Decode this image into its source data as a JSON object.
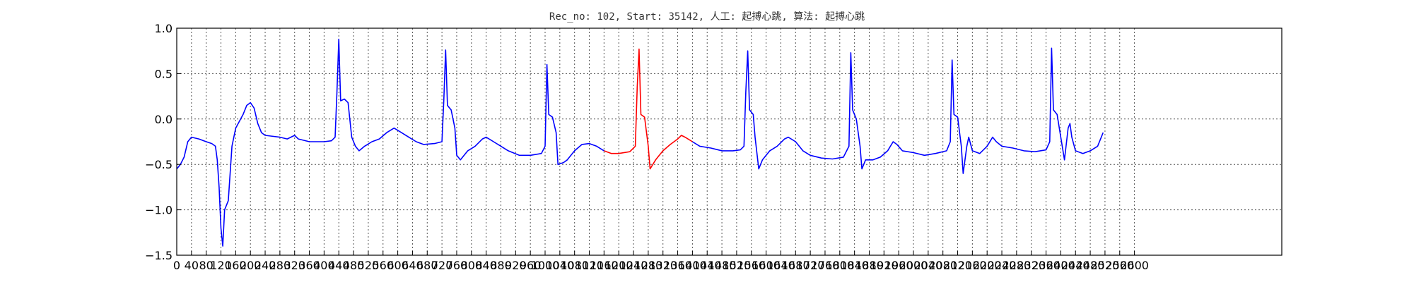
{
  "chart_data": {
    "type": "line",
    "title": "Rec_no: 102, Start: 35142, 人工: 起搏心跳, 算法: 起搏心跳",
    "xlabel": "",
    "ylabel": "",
    "xlim": [
      0,
      3000
    ],
    "ylim": [
      -1.5,
      1.0
    ],
    "grid": true,
    "colors": {
      "normal": "#0000ff",
      "highlight": "#ff0000"
    },
    "x_ticks": [
      0,
      40,
      80,
      120,
      160,
      200,
      240,
      280,
      320,
      360,
      400,
      440,
      480,
      520,
      560,
      600,
      640,
      680,
      720,
      760,
      800,
      840,
      880,
      920,
      960,
      1000,
      1040,
      1080,
      1120,
      1160,
      1200,
      1240,
      1280,
      1320,
      1360,
      1400,
      1440,
      1480,
      1520,
      1560,
      1600,
      1640,
      1680,
      1720,
      1760,
      1800,
      1840,
      1880,
      1920,
      1960,
      2000,
      2040,
      2080,
      2120,
      2160,
      2200,
      2240,
      2280,
      2320,
      2360,
      2400,
      2440,
      2480,
      2520,
      2560,
      2600
    ],
    "y_ticks": [
      "1.0",
      "0.5",
      "0.0",
      "−0.5",
      "−1.0",
      "−1.5"
    ],
    "y_tick_values": [
      1.0,
      0.5,
      0.0,
      -0.5,
      -1.0,
      -1.5
    ],
    "series": [
      {
        "color": "#0000ff",
        "points": [
          [
            0,
            -0.55
          ],
          [
            10,
            -0.5
          ],
          [
            20,
            -0.42
          ],
          [
            30,
            -0.25
          ],
          [
            40,
            -0.2
          ],
          [
            60,
            -0.22
          ],
          [
            80,
            -0.25
          ],
          [
            95,
            -0.27
          ],
          [
            105,
            -0.3
          ],
          [
            110,
            -0.45
          ],
          [
            115,
            -0.75
          ],
          [
            120,
            -1.2
          ],
          [
            125,
            -1.4
          ],
          [
            130,
            -1.0
          ],
          [
            140,
            -0.9
          ],
          [
            150,
            -0.3
          ],
          [
            160,
            -0.1
          ],
          [
            180,
            0.05
          ],
          [
            190,
            0.15
          ],
          [
            200,
            0.18
          ],
          [
            210,
            0.12
          ],
          [
            220,
            -0.05
          ],
          [
            230,
            -0.15
          ],
          [
            240,
            -0.18
          ],
          [
            280,
            -0.2
          ],
          [
            300,
            -0.22
          ],
          [
            320,
            -0.18
          ],
          [
            330,
            -0.22
          ],
          [
            360,
            -0.25
          ],
          [
            400,
            -0.25
          ],
          [
            420,
            -0.24
          ],
          [
            430,
            -0.2
          ],
          [
            435,
            0.3
          ],
          [
            440,
            0.88
          ],
          [
            445,
            0.2
          ],
          [
            455,
            0.22
          ],
          [
            465,
            0.18
          ],
          [
            475,
            -0.2
          ],
          [
            485,
            -0.3
          ],
          [
            495,
            -0.35
          ],
          [
            510,
            -0.3
          ],
          [
            530,
            -0.25
          ],
          [
            550,
            -0.22
          ],
          [
            570,
            -0.15
          ],
          [
            590,
            -0.1
          ],
          [
            610,
            -0.15
          ],
          [
            630,
            -0.2
          ],
          [
            650,
            -0.25
          ],
          [
            670,
            -0.28
          ],
          [
            700,
            -0.27
          ],
          [
            720,
            -0.25
          ],
          [
            725,
            0.2
          ],
          [
            730,
            0.76
          ],
          [
            735,
            0.15
          ],
          [
            745,
            0.1
          ],
          [
            755,
            -0.1
          ],
          [
            760,
            -0.4
          ],
          [
            770,
            -0.45
          ],
          [
            790,
            -0.35
          ],
          [
            810,
            -0.3
          ],
          [
            830,
            -0.22
          ],
          [
            840,
            -0.2
          ],
          [
            860,
            -0.25
          ],
          [
            880,
            -0.3
          ],
          [
            900,
            -0.35
          ],
          [
            930,
            -0.4
          ],
          [
            960,
            -0.4
          ],
          [
            990,
            -0.38
          ],
          [
            1000,
            -0.3
          ],
          [
            1005,
            0.6
          ],
          [
            1010,
            0.05
          ],
          [
            1020,
            0.02
          ],
          [
            1030,
            -0.15
          ],
          [
            1035,
            -0.5
          ],
          [
            1050,
            -0.48
          ],
          [
            1060,
            -0.45
          ],
          [
            1080,
            -0.35
          ],
          [
            1100,
            -0.28
          ],
          [
            1120,
            -0.27
          ],
          [
            1140,
            -0.3
          ],
          [
            1160,
            -0.35
          ]
        ]
      },
      {
        "color": "#ff0000",
        "points": [
          [
            1160,
            -0.35
          ],
          [
            1180,
            -0.38
          ],
          [
            1200,
            -0.38
          ],
          [
            1230,
            -0.36
          ],
          [
            1245,
            -0.3
          ],
          [
            1250,
            0.35
          ],
          [
            1255,
            0.77
          ],
          [
            1260,
            0.05
          ],
          [
            1270,
            0.02
          ],
          [
            1280,
            -0.3
          ],
          [
            1285,
            -0.55
          ],
          [
            1300,
            -0.45
          ],
          [
            1320,
            -0.35
          ],
          [
            1340,
            -0.28
          ],
          [
            1360,
            -0.22
          ],
          [
            1370,
            -0.18
          ],
          [
            1380,
            -0.2
          ],
          [
            1400,
            -0.25
          ]
        ]
      },
      {
        "color": "#0000ff",
        "points": [
          [
            1400,
            -0.25
          ],
          [
            1420,
            -0.3
          ],
          [
            1450,
            -0.32
          ],
          [
            1480,
            -0.35
          ],
          [
            1510,
            -0.35
          ],
          [
            1530,
            -0.34
          ],
          [
            1540,
            -0.3
          ],
          [
            1545,
            0.3
          ],
          [
            1550,
            0.75
          ],
          [
            1555,
            0.1
          ],
          [
            1565,
            0.05
          ],
          [
            1570,
            -0.2
          ],
          [
            1580,
            -0.55
          ],
          [
            1590,
            -0.45
          ],
          [
            1610,
            -0.35
          ],
          [
            1630,
            -0.3
          ],
          [
            1650,
            -0.22
          ],
          [
            1660,
            -0.2
          ],
          [
            1680,
            -0.25
          ],
          [
            1700,
            -0.35
          ],
          [
            1720,
            -0.4
          ],
          [
            1750,
            -0.43
          ],
          [
            1780,
            -0.44
          ],
          [
            1810,
            -0.42
          ],
          [
            1825,
            -0.3
          ],
          [
            1830,
            0.73
          ],
          [
            1835,
            0.1
          ],
          [
            1845,
            0.0
          ],
          [
            1855,
            -0.3
          ],
          [
            1860,
            -0.55
          ],
          [
            1870,
            -0.45
          ],
          [
            1890,
            -0.45
          ],
          [
            1910,
            -0.42
          ],
          [
            1930,
            -0.35
          ],
          [
            1945,
            -0.25
          ],
          [
            1955,
            -0.28
          ],
          [
            1970,
            -0.35
          ],
          [
            2000,
            -0.37
          ],
          [
            2030,
            -0.4
          ],
          [
            2060,
            -0.38
          ],
          [
            2090,
            -0.35
          ],
          [
            2100,
            -0.25
          ],
          [
            2105,
            0.65
          ],
          [
            2110,
            0.05
          ],
          [
            2120,
            0.02
          ],
          [
            2130,
            -0.3
          ],
          [
            2135,
            -0.6
          ],
          [
            2145,
            -0.3
          ],
          [
            2150,
            -0.2
          ],
          [
            2160,
            -0.35
          ],
          [
            2180,
            -0.38
          ],
          [
            2200,
            -0.3
          ],
          [
            2215,
            -0.2
          ],
          [
            2225,
            -0.25
          ],
          [
            2240,
            -0.3
          ],
          [
            2270,
            -0.32
          ],
          [
            2300,
            -0.35
          ],
          [
            2330,
            -0.36
          ],
          [
            2360,
            -0.34
          ],
          [
            2370,
            -0.25
          ],
          [
            2375,
            0.78
          ],
          [
            2380,
            0.1
          ],
          [
            2390,
            0.05
          ],
          [
            2400,
            -0.2
          ],
          [
            2410,
            -0.45
          ],
          [
            2420,
            -0.1
          ],
          [
            2425,
            -0.05
          ],
          [
            2430,
            -0.2
          ],
          [
            2440,
            -0.35
          ],
          [
            2460,
            -0.38
          ],
          [
            2480,
            -0.35
          ],
          [
            2500,
            -0.3
          ],
          [
            2510,
            -0.2
          ],
          [
            2515,
            -0.15
          ]
        ]
      }
    ]
  }
}
